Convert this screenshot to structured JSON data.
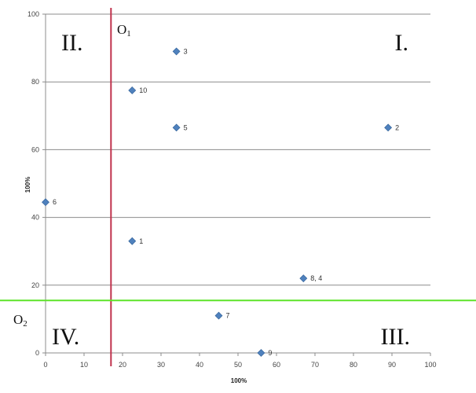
{
  "chart_data": {
    "type": "scatter",
    "title": "",
    "xlabel": "100%",
    "ylabel": "100%",
    "xlim": [
      0,
      100
    ],
    "ylim": [
      0,
      100
    ],
    "x_ticks": [
      0,
      10,
      20,
      30,
      40,
      50,
      60,
      70,
      80,
      90,
      100
    ],
    "y_ticks": [
      0,
      20,
      40,
      60,
      80,
      100
    ],
    "grid": "horizontal",
    "marker_color": "#4f81bd",
    "points": [
      {
        "x": 22.5,
        "y": 33,
        "label": "1"
      },
      {
        "x": 89,
        "y": 66.5,
        "label": "2"
      },
      {
        "x": 34,
        "y": 89,
        "label": "3"
      },
      {
        "x": 34,
        "y": 66.5,
        "label": "5"
      },
      {
        "x": 0,
        "y": 44.5,
        "label": "6"
      },
      {
        "x": 45,
        "y": 11,
        "label": "7"
      },
      {
        "x": 67,
        "y": 22,
        "label": "8, 4"
      },
      {
        "x": 56,
        "y": 0,
        "label": "9"
      },
      {
        "x": 22.5,
        "y": 77.5,
        "label": "10"
      }
    ],
    "reference_lines": [
      {
        "orientation": "vertical",
        "x": 17,
        "color": "#c0334d"
      },
      {
        "orientation": "horizontal",
        "y": 15.5,
        "color": "#5ee32a"
      }
    ],
    "annotations": {
      "quadrants": [
        {
          "text": "I.",
          "position": "top-right"
        },
        {
          "text": "II.",
          "position": "top-left"
        },
        {
          "text": "III.",
          "position": "bottom-right"
        },
        {
          "text": "IV.",
          "position": "bottom-left"
        }
      ],
      "origins": [
        {
          "main": "O",
          "sub": "1"
        },
        {
          "main": "O",
          "sub": "2"
        }
      ]
    }
  }
}
